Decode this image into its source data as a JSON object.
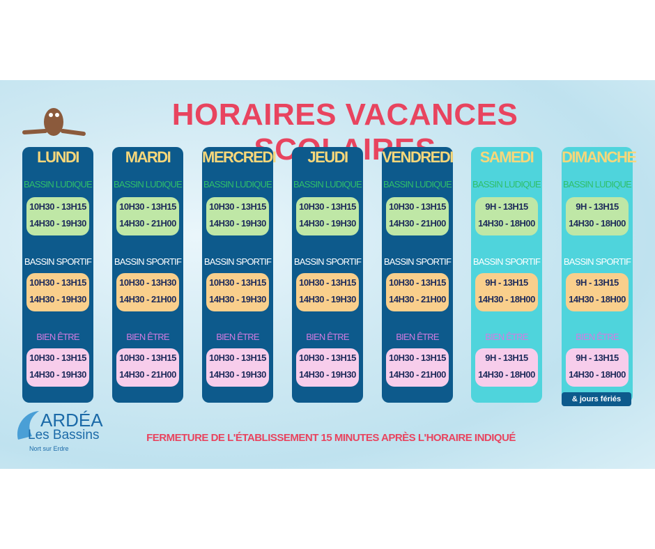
{
  "title": "HORAIRES VACANCES SCOLAIRES",
  "days": [
    {
      "name": "LUNDI",
      "color": "#0d5a8c",
      "sections": [
        {
          "label": "BASSIN LUDIQUE",
          "times": [
            "10H30 - 13H15",
            "14H30 - 19H30"
          ]
        },
        {
          "label": "BASSIN SPORTIF",
          "times": [
            "10H30 - 13H15",
            "14H30 - 19H30"
          ]
        },
        {
          "label": "BIEN ÊTRE",
          "times": [
            "10H30 - 13H15",
            "14H30 - 19H30"
          ]
        }
      ]
    },
    {
      "name": "MARDI",
      "color": "#0d5a8c",
      "sections": [
        {
          "label": "BASSIN LUDIQUE",
          "times": [
            "10H30 - 13H15",
            "14H30 - 21H00"
          ]
        },
        {
          "label": "BASSIN SPORTIF",
          "times": [
            "10H30 - 13H30",
            "14H30 - 21H00"
          ]
        },
        {
          "label": "BIEN ÊTRE",
          "times": [
            "10H30 - 13H15",
            "14H30 - 21H00"
          ]
        }
      ]
    },
    {
      "name": "MERCREDI",
      "color": "#0d5a8c",
      "sections": [
        {
          "label": "BASSIN LUDIQUE",
          "times": [
            "10H30 - 13H15",
            "14H30 - 19H30"
          ]
        },
        {
          "label": "BASSIN SPORTIF",
          "times": [
            "10H30 - 13H15",
            "14H30 - 19H30"
          ]
        },
        {
          "label": "BIEN ÊTRE",
          "times": [
            "10H30 - 13H15",
            "14H30 - 19H30"
          ]
        }
      ]
    },
    {
      "name": "JEUDI",
      "color": "#0d5a8c",
      "sections": [
        {
          "label": "BASSIN LUDIQUE",
          "times": [
            "10H30 - 13H15",
            "14H30 - 19H30"
          ]
        },
        {
          "label": "BASSIN SPORTIF",
          "times": [
            "10H30 - 13H15",
            "14H30 - 19H30"
          ]
        },
        {
          "label": "BIEN ÊTRE",
          "times": [
            "10H30 - 13H15",
            "14H30 - 19H30"
          ]
        }
      ]
    },
    {
      "name": "VENDREDI",
      "color": "#0d5a8c",
      "sections": [
        {
          "label": "BASSIN LUDIQUE",
          "times": [
            "10H30 - 13H15",
            "14H30 - 21H00"
          ]
        },
        {
          "label": "BASSIN SPORTIF",
          "times": [
            "10H30 - 13H15",
            "14H30 - 21H00"
          ]
        },
        {
          "label": "BIEN ÊTRE",
          "times": [
            "10H30 - 13H15",
            "14H30 - 21H00"
          ]
        }
      ]
    },
    {
      "name": "SAMEDI",
      "color": "#4fd4dc",
      "sections": [
        {
          "label": "BASSIN LUDIQUE",
          "times": [
            "9H - 13H15",
            "14H30 - 18H00"
          ]
        },
        {
          "label": "BASSIN SPORTIF",
          "times": [
            "9H - 13H15",
            "14H30 - 18H00"
          ]
        },
        {
          "label": "BIEN ÊTRE",
          "times": [
            "9H - 13H15",
            "14H30 - 18H00"
          ]
        }
      ]
    },
    {
      "name": "DIMANCHE",
      "color": "#4fd4dc",
      "sections": [
        {
          "label": "BASSIN LUDIQUE",
          "times": [
            "9H - 13H15",
            "14H30 - 18H00"
          ]
        },
        {
          "label": "BASSIN SPORTIF",
          "times": [
            "9H - 13H15",
            "14H30 - 18H00"
          ]
        },
        {
          "label": "BIEN ÊTRE",
          "times": [
            "9H - 13H15",
            "14H30 - 18H00"
          ]
        }
      ]
    }
  ],
  "holiday_note": "& jours fériés",
  "closing_note": "FERMETURE DE L'ÉTABLISSEMENT 15 MINUTES APRÈS L'HORAIRE INDIQUÉ",
  "logo": {
    "name": "ARDÉA",
    "subtitle": "Les Bassins",
    "location": "Nort sur Erdre"
  }
}
